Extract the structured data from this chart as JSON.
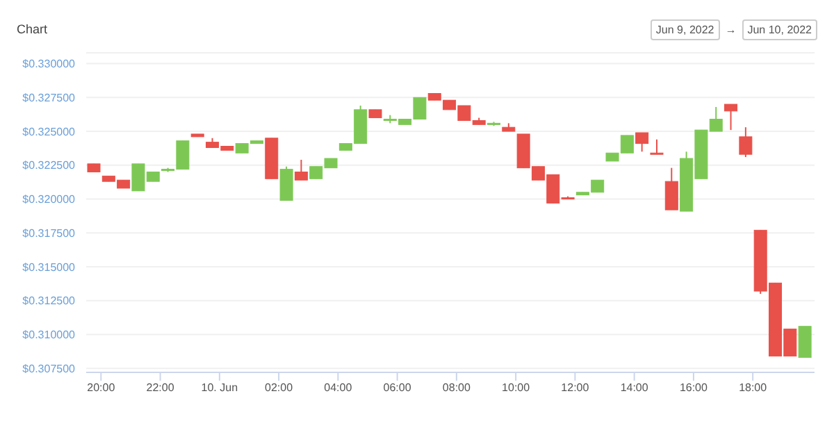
{
  "chart_data": {
    "type": "candlestick",
    "title": "Chart",
    "annotations": [
      "Jun 9, 2022",
      "→",
      "Jun 10, 2022"
    ],
    "x": [
      "2022-06-09T19:45",
      "2022-06-09T20:15",
      "2022-06-09T20:45",
      "2022-06-09T21:15",
      "2022-06-09T21:45",
      "2022-06-09T22:15",
      "2022-06-09T22:45",
      "2022-06-09T23:15",
      "2022-06-09T23:45",
      "2022-06-10T00:15",
      "2022-06-10T00:45",
      "2022-06-10T01:15",
      "2022-06-10T01:45",
      "2022-06-10T02:15",
      "2022-06-10T02:45",
      "2022-06-10T03:15",
      "2022-06-10T03:45",
      "2022-06-10T04:15",
      "2022-06-10T04:45",
      "2022-06-10T05:15",
      "2022-06-10T05:45",
      "2022-06-10T06:15",
      "2022-06-10T06:45",
      "2022-06-10T07:15",
      "2022-06-10T07:45",
      "2022-06-10T08:15",
      "2022-06-10T08:45",
      "2022-06-10T09:15",
      "2022-06-10T09:45",
      "2022-06-10T10:15",
      "2022-06-10T10:45",
      "2022-06-10T11:15",
      "2022-06-10T11:45",
      "2022-06-10T12:15",
      "2022-06-10T12:45",
      "2022-06-10T13:15",
      "2022-06-10T13:45",
      "2022-06-10T14:15",
      "2022-06-10T14:45",
      "2022-06-10T15:15",
      "2022-06-10T15:45",
      "2022-06-10T16:15",
      "2022-06-10T16:45",
      "2022-06-10T17:15",
      "2022-06-10T17:45",
      "2022-06-10T18:15",
      "2022-06-10T18:45",
      "2022-06-10T19:15",
      "2022-06-10T19:45"
    ],
    "ohlc": [
      [
        0.3226,
        0.3226,
        0.322,
        0.322
      ],
      [
        0.3217,
        0.3217,
        0.3213,
        0.3213
      ],
      [
        0.3214,
        0.3214,
        0.3208,
        0.3208
      ],
      [
        0.3206,
        0.3226,
        0.3206,
        0.3226
      ],
      [
        0.3213,
        0.322,
        0.3213,
        0.322
      ],
      [
        0.3221,
        0.3223,
        0.322,
        0.3222
      ],
      [
        0.3222,
        0.3243,
        0.3222,
        0.3243
      ],
      [
        0.3248,
        0.3248,
        0.3246,
        0.3246
      ],
      [
        0.3242,
        0.3245,
        0.3238,
        0.3238
      ],
      [
        0.3239,
        0.3239,
        0.3236,
        0.3236
      ],
      [
        0.3234,
        0.3241,
        0.3234,
        0.3241
      ],
      [
        0.3241,
        0.3243,
        0.3241,
        0.3243
      ],
      [
        0.3245,
        0.3245,
        0.3215,
        0.3215
      ],
      [
        0.3199,
        0.3224,
        0.3199,
        0.3222
      ],
      [
        0.322,
        0.3229,
        0.3214,
        0.3214
      ],
      [
        0.3215,
        0.3224,
        0.3215,
        0.3224
      ],
      [
        0.3223,
        0.323,
        0.3223,
        0.323
      ],
      [
        0.3236,
        0.3241,
        0.3236,
        0.3241
      ],
      [
        0.3241,
        0.3269,
        0.3241,
        0.3266
      ],
      [
        0.3266,
        0.3266,
        0.326,
        0.326
      ],
      [
        0.3259,
        0.3262,
        0.3256,
        0.3259
      ],
      [
        0.3255,
        0.3259,
        0.3255,
        0.3259
      ],
      [
        0.3259,
        0.3275,
        0.3259,
        0.3275
      ],
      [
        0.3278,
        0.3278,
        0.3273,
        0.3273
      ],
      [
        0.3273,
        0.3273,
        0.3266,
        0.3266
      ],
      [
        0.3269,
        0.3269,
        0.3258,
        0.3258
      ],
      [
        0.3258,
        0.326,
        0.3255,
        0.3255
      ],
      [
        0.3255,
        0.3257,
        0.3254,
        0.3256
      ],
      [
        0.3253,
        0.3256,
        0.325,
        0.325
      ],
      [
        0.3248,
        0.3248,
        0.3223,
        0.3223
      ],
      [
        0.3224,
        0.3224,
        0.3214,
        0.3214
      ],
      [
        0.3218,
        0.3218,
        0.3197,
        0.3197
      ],
      [
        0.3201,
        0.3202,
        0.32,
        0.32
      ],
      [
        0.3203,
        0.3205,
        0.3203,
        0.3205
      ],
      [
        0.3205,
        0.3214,
        0.3205,
        0.3214
      ],
      [
        0.3228,
        0.3234,
        0.3228,
        0.3234
      ],
      [
        0.3234,
        0.3247,
        0.3234,
        0.3247
      ],
      [
        0.3249,
        0.3249,
        0.3235,
        0.3241
      ],
      [
        0.3234,
        0.3244,
        0.3233,
        0.3233
      ],
      [
        0.3213,
        0.3223,
        0.3192,
        0.3192
      ],
      [
        0.3191,
        0.3235,
        0.3191,
        0.323
      ],
      [
        0.3215,
        0.3251,
        0.3215,
        0.3251
      ],
      [
        0.325,
        0.3268,
        0.325,
        0.3259
      ],
      [
        0.327,
        0.327,
        0.3251,
        0.3265
      ],
      [
        0.3246,
        0.3253,
        0.3231,
        0.3233
      ],
      [
        0.3177,
        0.3177,
        0.313,
        0.3132
      ],
      [
        0.3138,
        0.3138,
        0.3084,
        0.3084
      ],
      [
        0.3104,
        0.3104,
        0.3084,
        0.3084
      ],
      [
        0.3083,
        0.3106,
        0.3083,
        0.3106
      ]
    ],
    "colors": [
      "#e8504a",
      "#e8504a",
      "#e8504a",
      "#7dc855",
      "#7dc855",
      "#7dc855",
      "#7dc855",
      "#e8504a",
      "#e8504a",
      "#e8504a",
      "#7dc855",
      "#7dc855",
      "#e8504a",
      "#7dc855",
      "#e8504a",
      "#7dc855",
      "#7dc855",
      "#7dc855",
      "#7dc855",
      "#e8504a",
      "#7dc855",
      "#7dc855",
      "#7dc855",
      "#e8504a",
      "#e8504a",
      "#e8504a",
      "#e8504a",
      "#7dc855",
      "#e8504a",
      "#e8504a",
      "#e8504a",
      "#e8504a",
      "#e8504a",
      "#7dc855",
      "#7dc855",
      "#7dc855",
      "#7dc855",
      "#e8504a",
      "#e8504a",
      "#e8504a",
      "#7dc855",
      "#7dc855",
      "#7dc855",
      "#e8504a",
      "#e8504a",
      "#e8504a",
      "#e8504a",
      "#e8504a",
      "#7dc855"
    ],
    "xlim": [
      "2022-06-09T19:30",
      "2022-06-10T20:05"
    ],
    "xticks": [
      {
        "value": "2022-06-09T20:00",
        "label": "20:00"
      },
      {
        "value": "2022-06-09T22:00",
        "label": "22:00"
      },
      {
        "value": "2022-06-10T00:00",
        "label": "10. Jun"
      },
      {
        "value": "2022-06-10T02:00",
        "label": "02:00"
      },
      {
        "value": "2022-06-10T04:00",
        "label": "04:00"
      },
      {
        "value": "2022-06-10T06:00",
        "label": "06:00"
      },
      {
        "value": "2022-06-10T08:00",
        "label": "08:00"
      },
      {
        "value": "2022-06-10T10:00",
        "label": "10:00"
      },
      {
        "value": "2022-06-10T12:00",
        "label": "12:00"
      },
      {
        "value": "2022-06-10T14:00",
        "label": "14:00"
      },
      {
        "value": "2022-06-10T16:00",
        "label": "16:00"
      },
      {
        "value": "2022-06-10T18:00",
        "label": "18:00"
      }
    ],
    "ylim": [
      0.3072,
      0.3308
    ],
    "yticks": [
      {
        "value": 0.3075,
        "label": "$0.307500"
      },
      {
        "value": 0.31,
        "label": "$0.310000"
      },
      {
        "value": 0.3125,
        "label": "$0.312500"
      },
      {
        "value": 0.315,
        "label": "$0.315000"
      },
      {
        "value": 0.3175,
        "label": "$0.317500"
      },
      {
        "value": 0.32,
        "label": "$0.320000"
      },
      {
        "value": 0.3225,
        "label": "$0.322500"
      },
      {
        "value": 0.325,
        "label": "$0.325000"
      },
      {
        "value": 0.3275,
        "label": "$0.327500"
      },
      {
        "value": 0.33,
        "label": "$0.330000"
      }
    ],
    "grid": "y"
  }
}
